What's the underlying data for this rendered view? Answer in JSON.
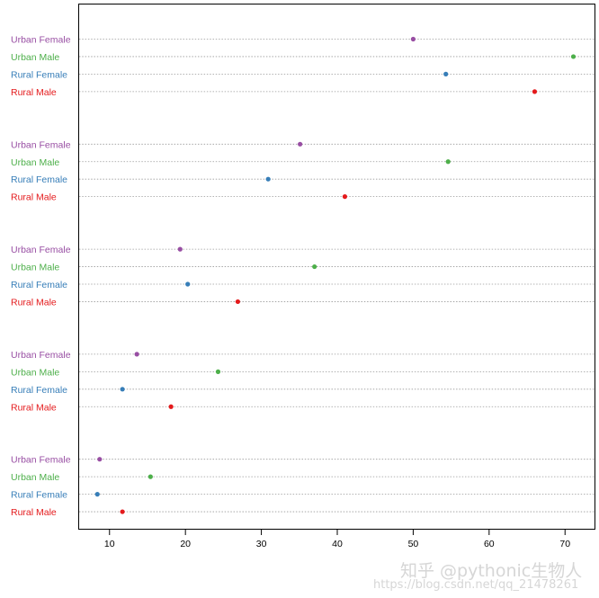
{
  "chart_data": {
    "type": "dotchart",
    "title": "",
    "xlabel": "",
    "ylabel": "",
    "xlim": [
      6,
      74
    ],
    "x_ticks": [
      10,
      20,
      30,
      40,
      50,
      60,
      70
    ],
    "grid": "dotted horizontal lines per row",
    "labels": [
      "Urban Female",
      "Urban Male",
      "Rural Female",
      "Rural Male"
    ],
    "label_colors": {
      "Urban Female": "#984ea3",
      "Urban Male": "#4daf4a",
      "Rural Female": "#377eb8",
      "Rural Male": "#e41a1c"
    },
    "groups": [
      {
        "values": {
          "Urban Female": 50.0,
          "Urban Male": 71.1,
          "Rural Female": 54.3,
          "Rural Male": 66.0
        }
      },
      {
        "values": {
          "Urban Female": 35.1,
          "Urban Male": 54.6,
          "Rural Female": 30.9,
          "Rural Male": 41.0
        }
      },
      {
        "values": {
          "Urban Female": 19.3,
          "Urban Male": 37.0,
          "Rural Female": 20.3,
          "Rural Male": 26.9
        }
      },
      {
        "values": {
          "Urban Female": 13.6,
          "Urban Male": 24.3,
          "Rural Female": 11.7,
          "Rural Male": 18.1
        }
      },
      {
        "values": {
          "Urban Female": 8.7,
          "Urban Male": 15.4,
          "Rural Female": 8.4,
          "Rural Male": 11.7
        }
      }
    ]
  },
  "watermark": {
    "main": "知乎 @pythonic生物人",
    "url": "https://blog.csdn.net/qq_21478261"
  }
}
